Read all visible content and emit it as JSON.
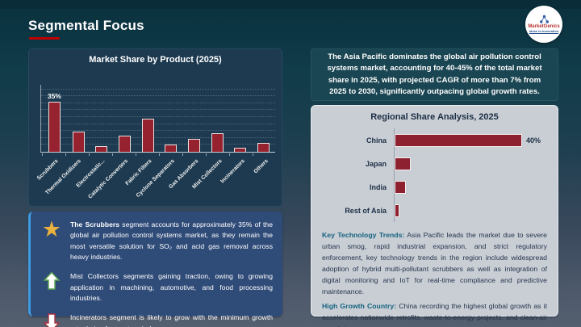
{
  "slide": {
    "title": "Segmental Focus"
  },
  "logo": {
    "brand": "MarketGenics",
    "tagline": "Ideas to Innovation"
  },
  "headline": {
    "text": "The Asia Pacific dominates the global air pollution control systems market, accounting for 40-45% of the total market share in 2025, with projected CAGR of more than 7% from 2025 to 2030, significantly outpacing global growth rates."
  },
  "insights": [
    {
      "icon": "star",
      "lead": "The Scrubbers",
      "text": " segment accounts for approximately 35% of the global air pollution control systems market, as they remain the most versatile solution for SO₂ and acid gas removal across heavy industries."
    },
    {
      "icon": "arrow-up",
      "lead": "",
      "text": "Mist Collectors segments gaining traction, owing to growing application in machining, automotive, and food processing industries."
    },
    {
      "icon": "arrow-down",
      "lead": "",
      "text": "Incinerators segment is likely to grow with the minimum growth rate during forecast period"
    }
  ],
  "trends": {
    "label": "Key Technology Trends:",
    "text": " Asia Pacific leads the market due to severe urban smog, rapid industrial expansion, and strict regulatory enforcement, key technology trends in the region include widespread adoption of hybrid multi-pollutant scrubbers as well as integration of digital monitoring and IoT for real-time compliance and predictive maintenance."
  },
  "growth": {
    "label": "High Growth Country:",
    "text": " China recording the highest global growth as it accelerates nationwide retrofits, waste-to-energy projects, and clean-air mandates."
  },
  "colors": {
    "accent_red": "#c00000",
    "bar_red": "#96222f",
    "panel_navy": "#1d3a50",
    "panel_blue": "#2f4b78",
    "teal_box": "#1a4552",
    "light_panel": "#c9ced5",
    "teal_text": "#15637f",
    "navy_text": "#1c2e44",
    "gold_star": "#eab23e"
  },
  "chart_data": [
    {
      "type": "bar",
      "orientation": "vertical",
      "title": "Market Share by Product (2025)",
      "categories": [
        "Scrubbers",
        "Thermal Oxidizers",
        "Electrostatic...",
        "Catalytic Converters",
        "Fabric Filters",
        "Cyclone Separators",
        "Gas Absorbers",
        "Mist Collectors",
        "Incinerators",
        "Others"
      ],
      "values": [
        35,
        14,
        4,
        11,
        23,
        5,
        9,
        13,
        3,
        6
      ],
      "value_labels": [
        "35%",
        "",
        "",
        "",
        "",
        "",
        "",
        "",
        "",
        ""
      ],
      "unit": "%",
      "xlabel": "",
      "ylabel": "",
      "ylim": [
        0,
        40
      ],
      "grid": true,
      "legend": false
    },
    {
      "type": "bar",
      "orientation": "horizontal",
      "title": "Regional Share Analysis, 2025",
      "categories": [
        "China",
        "Japan",
        "India",
        "Rest of Asia"
      ],
      "values": [
        40,
        5,
        3.5,
        1.5
      ],
      "value_labels": [
        "40%",
        "",
        "",
        ""
      ],
      "unit": "%",
      "xlabel": "",
      "ylabel": "",
      "xlim": [
        0,
        45
      ],
      "grid": false,
      "legend": false
    }
  ]
}
